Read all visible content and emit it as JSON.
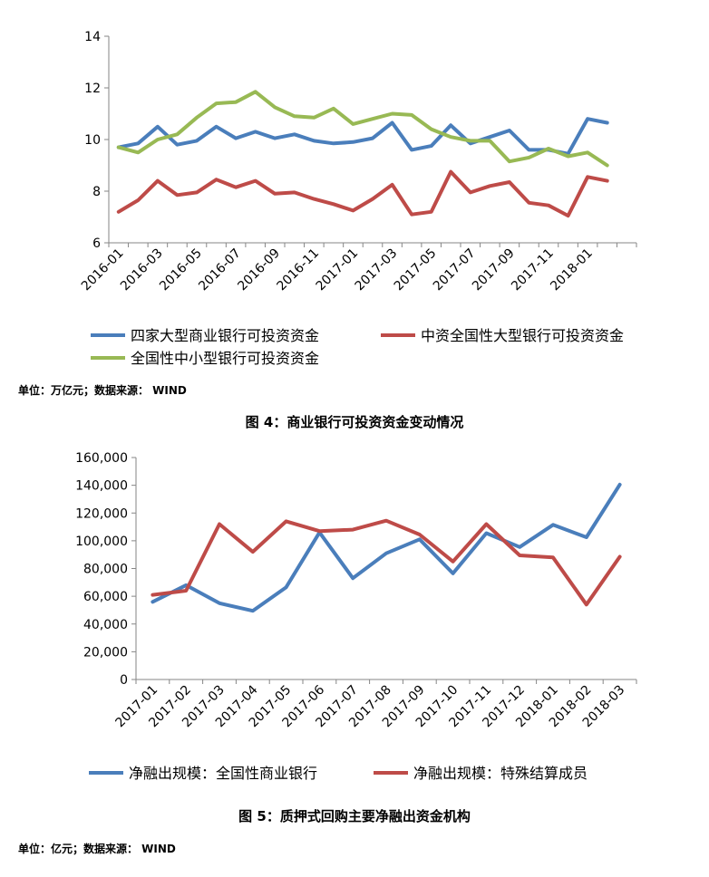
{
  "chart_data": [
    {
      "type": "line",
      "x": [
        "2016-01",
        "2016-02",
        "2016-03",
        "2016-04",
        "2016-05",
        "2016-06",
        "2016-07",
        "2016-08",
        "2016-09",
        "2016-10",
        "2016-11",
        "2016-12",
        "2017-01",
        "2017-02",
        "2017-03",
        "2017-04",
        "2017-05",
        "2017-06",
        "2017-07",
        "2017-08",
        "2017-09",
        "2017-10",
        "2017-11",
        "2017-12",
        "2018-01",
        "2018-02",
        "2018-03"
      ],
      "xticks": [
        "2016-01",
        "2016-03",
        "2016-05",
        "2016-07",
        "2016-09",
        "2016-11",
        "2017-01",
        "2017-03",
        "2017-05",
        "2017-07",
        "2017-09",
        "2017-11",
        "2018-01"
      ],
      "yticks": [
        "6",
        "8",
        "10",
        "12",
        "14"
      ],
      "ylim": [
        6,
        14
      ],
      "legend_position": "bottom",
      "series": [
        {
          "name": "四家大型商业银行可投资资金",
          "color": "#4a7ebb",
          "values": [
            9.7,
            9.85,
            10.5,
            9.8,
            9.95,
            10.5,
            10.05,
            10.3,
            10.05,
            10.2,
            9.95,
            9.85,
            9.9,
            10.05,
            10.65,
            9.6,
            9.75,
            10.55,
            9.85,
            10.1,
            10.35,
            9.6,
            9.6,
            9.45,
            10.8,
            10.65,
            null
          ]
        },
        {
          "name": "中资全国性大型银行可投资资金",
          "color": "#be4b48",
          "values": [
            7.2,
            7.65,
            8.4,
            7.85,
            7.95,
            8.45,
            8.15,
            8.4,
            7.9,
            7.95,
            7.7,
            7.5,
            7.25,
            7.7,
            8.25,
            7.1,
            7.2,
            8.75,
            7.95,
            8.2,
            8.35,
            7.55,
            7.45,
            7.05,
            8.55,
            8.4,
            null
          ]
        },
        {
          "name": "全国性中小型银行可投资资金",
          "color": "#98b954",
          "values": [
            9.7,
            9.5,
            10.0,
            10.2,
            10.85,
            11.4,
            11.45,
            11.85,
            11.25,
            10.9,
            10.85,
            11.2,
            10.6,
            10.8,
            11.0,
            10.95,
            10.4,
            10.1,
            9.95,
            9.95,
            9.15,
            9.3,
            9.65,
            9.35,
            9.5,
            9.0,
            null
          ]
        }
      ],
      "note": "单位：万亿元；数据来源：  WIND",
      "caption": "图 4：商业银行可投资资金变动情况"
    },
    {
      "type": "line",
      "x": [
        "2017-01",
        "2017-02",
        "2017-03",
        "2017-04",
        "2017-05",
        "2017-06",
        "2017-07",
        "2017-08",
        "2017-09",
        "2017-10",
        "2017-11",
        "2017-12",
        "2018-01",
        "2018-02",
        "2018-03"
      ],
      "xticks": [
        "2017-01",
        "2017-02",
        "2017-03",
        "2017-04",
        "2017-05",
        "2017-06",
        "2017-07",
        "2017-08",
        "2017-09",
        "2017-10",
        "2017-11",
        "2017-12",
        "2018-01",
        "2018-02",
        "2018-03"
      ],
      "yticks": [
        "0",
        "20,000",
        "40,000",
        "60,000",
        "80,000",
        "100,000",
        "120,000",
        "140,000",
        "160,000"
      ],
      "ylim": [
        0,
        160000
      ],
      "legend_position": "bottom",
      "series": [
        {
          "name": "净融出规模：全国性商业银行",
          "color": "#4a7ebb",
          "values": [
            56000,
            68000,
            55000,
            49500,
            66500,
            106000,
            73000,
            91000,
            101000,
            76500,
            105500,
            95500,
            111500,
            102500,
            140500
          ]
        },
        {
          "name": "净融出规模：特殊结算成员",
          "color": "#be4b48",
          "values": [
            61000,
            64000,
            112000,
            92000,
            114000,
            107000,
            108000,
            114500,
            104500,
            85000,
            112000,
            89500,
            88000,
            54000,
            88500
          ]
        }
      ],
      "caption": "图 5：质押式回购主要净融出资金机构",
      "note": "单位：亿元；数据来源：  WIND"
    }
  ]
}
